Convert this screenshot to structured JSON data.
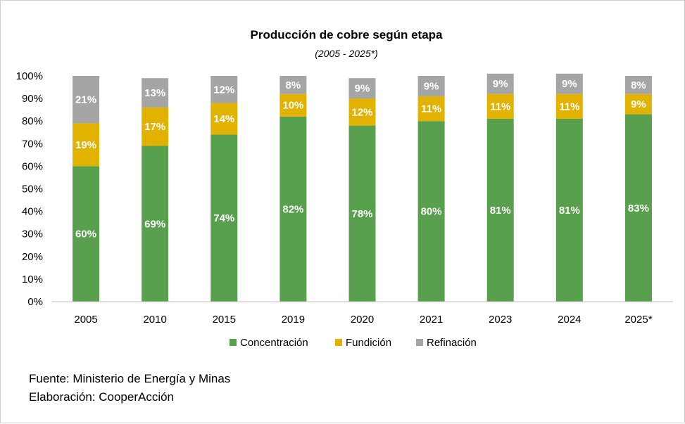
{
  "chart_data": {
    "type": "bar",
    "stacked": true,
    "title": "Producción de cobre según etapa",
    "subtitle": "(2005 - 2025*)",
    "categories": [
      "2005",
      "2010",
      "2015",
      "2019",
      "2020",
      "2021",
      "2023",
      "2024",
      "2025*"
    ],
    "series": [
      {
        "name": "Concentración",
        "color": "#58A04D",
        "values": [
          60,
          69,
          74,
          82,
          78,
          80,
          81,
          81,
          83
        ]
      },
      {
        "name": "Fundición",
        "color": "#E1B300",
        "values": [
          19,
          17,
          14,
          10,
          12,
          11,
          11,
          11,
          9
        ]
      },
      {
        "name": "Refinación",
        "color": "#A5A5A5",
        "values": [
          21,
          13,
          12,
          8,
          9,
          9,
          9,
          9,
          8
        ]
      }
    ],
    "yticks": [
      "0%",
      "10%",
      "20%",
      "30%",
      "40%",
      "50%",
      "60%",
      "70%",
      "80%",
      "90%",
      "100%"
    ],
    "ylim": [
      0,
      100
    ],
    "unit": "%",
    "grid": false,
    "legend": "bottom"
  },
  "footer": {
    "source": "Fuente: Ministerio de Energía y Minas",
    "credit": "Elaboración: CooperAcción"
  }
}
